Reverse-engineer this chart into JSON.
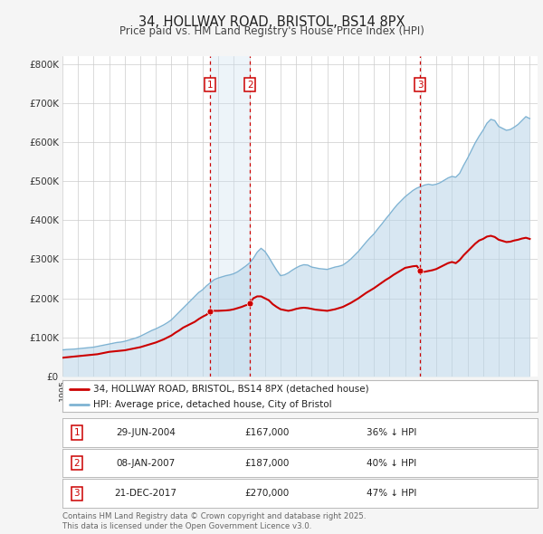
{
  "title": "34, HOLLWAY ROAD, BRISTOL, BS14 8PX",
  "subtitle": "Price paid vs. HM Land Registry's House Price Index (HPI)",
  "background_color": "#f5f5f5",
  "plot_bg_color": "#ffffff",
  "grid_color": "#cccccc",
  "hpi_color": "#7fb3d3",
  "hpi_fill_color": "#b8d4e8",
  "price_color": "#cc0000",
  "vline_color1": "#cc0000",
  "vline_color3": "#cc0000",
  "ylim": [
    0,
    820000
  ],
  "yticks": [
    0,
    100000,
    200000,
    300000,
    400000,
    500000,
    600000,
    700000,
    800000
  ],
  "ytick_labels": [
    "£0",
    "£100K",
    "£200K",
    "£300K",
    "£400K",
    "£500K",
    "£600K",
    "£700K",
    "£800K"
  ],
  "xlim_start": 1995.0,
  "xlim_end": 2025.5,
  "legend_line1": "34, HOLLWAY ROAD, BRISTOL, BS14 8PX (detached house)",
  "legend_line2": "HPI: Average price, detached house, City of Bristol",
  "purchases": [
    {
      "id": 1,
      "date": "29-JUN-2004",
      "date_x": 2004.49,
      "price": 167000,
      "pct": "36%"
    },
    {
      "id": 2,
      "date": "08-JAN-2007",
      "date_x": 2007.03,
      "price": 187000,
      "pct": "40%"
    },
    {
      "id": 3,
      "date": "21-DEC-2017",
      "date_x": 2017.97,
      "price": 270000,
      "pct": "47%"
    }
  ],
  "footer": "Contains HM Land Registry data © Crown copyright and database right 2025.\nThis data is licensed under the Open Government Licence v3.0.",
  "hpi_data": [
    [
      1995.0,
      68000
    ],
    [
      1995.25,
      69000
    ],
    [
      1995.5,
      69500
    ],
    [
      1995.75,
      70000
    ],
    [
      1996.0,
      71000
    ],
    [
      1996.25,
      72000
    ],
    [
      1996.5,
      73000
    ],
    [
      1996.75,
      74000
    ],
    [
      1997.0,
      75000
    ],
    [
      1997.25,
      77000
    ],
    [
      1997.5,
      79000
    ],
    [
      1997.75,
      81000
    ],
    [
      1998.0,
      83000
    ],
    [
      1998.25,
      85000
    ],
    [
      1998.5,
      87000
    ],
    [
      1998.75,
      88000
    ],
    [
      1999.0,
      90000
    ],
    [
      1999.25,
      93000
    ],
    [
      1999.5,
      96000
    ],
    [
      1999.75,
      99000
    ],
    [
      2000.0,
      103000
    ],
    [
      2000.25,
      108000
    ],
    [
      2000.5,
      113000
    ],
    [
      2000.75,
      118000
    ],
    [
      2001.0,
      122000
    ],
    [
      2001.25,
      127000
    ],
    [
      2001.5,
      132000
    ],
    [
      2001.75,
      138000
    ],
    [
      2002.0,
      145000
    ],
    [
      2002.25,
      155000
    ],
    [
      2002.5,
      165000
    ],
    [
      2002.75,
      175000
    ],
    [
      2003.0,
      185000
    ],
    [
      2003.25,
      195000
    ],
    [
      2003.5,
      205000
    ],
    [
      2003.75,
      215000
    ],
    [
      2004.0,
      222000
    ],
    [
      2004.25,
      232000
    ],
    [
      2004.5,
      240000
    ],
    [
      2004.75,
      248000
    ],
    [
      2005.0,
      252000
    ],
    [
      2005.25,
      255000
    ],
    [
      2005.5,
      258000
    ],
    [
      2005.75,
      260000
    ],
    [
      2006.0,
      263000
    ],
    [
      2006.25,
      268000
    ],
    [
      2006.5,
      275000
    ],
    [
      2006.75,
      282000
    ],
    [
      2007.0,
      290000
    ],
    [
      2007.25,
      302000
    ],
    [
      2007.5,
      318000
    ],
    [
      2007.75,
      328000
    ],
    [
      2008.0,
      320000
    ],
    [
      2008.25,
      305000
    ],
    [
      2008.5,
      288000
    ],
    [
      2008.75,
      272000
    ],
    [
      2009.0,
      258000
    ],
    [
      2009.25,
      260000
    ],
    [
      2009.5,
      265000
    ],
    [
      2009.75,
      272000
    ],
    [
      2010.0,
      278000
    ],
    [
      2010.25,
      283000
    ],
    [
      2010.5,
      286000
    ],
    [
      2010.75,
      285000
    ],
    [
      2011.0,
      280000
    ],
    [
      2011.25,
      278000
    ],
    [
      2011.5,
      276000
    ],
    [
      2011.75,
      275000
    ],
    [
      2012.0,
      274000
    ],
    [
      2012.25,
      277000
    ],
    [
      2012.5,
      280000
    ],
    [
      2012.75,
      282000
    ],
    [
      2013.0,
      285000
    ],
    [
      2013.25,
      292000
    ],
    [
      2013.5,
      300000
    ],
    [
      2013.75,
      310000
    ],
    [
      2014.0,
      320000
    ],
    [
      2014.25,
      332000
    ],
    [
      2014.5,
      344000
    ],
    [
      2014.75,
      355000
    ],
    [
      2015.0,
      365000
    ],
    [
      2015.25,
      378000
    ],
    [
      2015.5,
      390000
    ],
    [
      2015.75,
      403000
    ],
    [
      2016.0,
      415000
    ],
    [
      2016.25,
      428000
    ],
    [
      2016.5,
      440000
    ],
    [
      2016.75,
      450000
    ],
    [
      2017.0,
      460000
    ],
    [
      2017.25,
      468000
    ],
    [
      2017.5,
      476000
    ],
    [
      2017.75,
      482000
    ],
    [
      2018.0,
      486000
    ],
    [
      2018.25,
      490000
    ],
    [
      2018.5,
      492000
    ],
    [
      2018.75,
      490000
    ],
    [
      2019.0,
      492000
    ],
    [
      2019.25,
      496000
    ],
    [
      2019.5,
      502000
    ],
    [
      2019.75,
      508000
    ],
    [
      2020.0,
      512000
    ],
    [
      2020.25,
      510000
    ],
    [
      2020.5,
      520000
    ],
    [
      2020.75,
      540000
    ],
    [
      2021.0,
      558000
    ],
    [
      2021.25,
      578000
    ],
    [
      2021.5,
      598000
    ],
    [
      2021.75,
      615000
    ],
    [
      2022.0,
      630000
    ],
    [
      2022.25,
      648000
    ],
    [
      2022.5,
      658000
    ],
    [
      2022.75,
      655000
    ],
    [
      2023.0,
      640000
    ],
    [
      2023.25,
      635000
    ],
    [
      2023.5,
      630000
    ],
    [
      2023.75,
      632000
    ],
    [
      2024.0,
      638000
    ],
    [
      2024.25,
      645000
    ],
    [
      2024.5,
      655000
    ],
    [
      2024.75,
      665000
    ],
    [
      2025.0,
      660000
    ]
  ],
  "price_data": [
    [
      1995.0,
      48000
    ],
    [
      1995.25,
      49000
    ],
    [
      1995.5,
      50000
    ],
    [
      1995.75,
      51000
    ],
    [
      1996.0,
      52000
    ],
    [
      1996.25,
      53000
    ],
    [
      1996.5,
      54000
    ],
    [
      1996.75,
      55000
    ],
    [
      1997.0,
      56000
    ],
    [
      1997.25,
      57000
    ],
    [
      1997.5,
      59000
    ],
    [
      1997.75,
      61000
    ],
    [
      1998.0,
      63000
    ],
    [
      1998.25,
      64000
    ],
    [
      1998.5,
      65000
    ],
    [
      1998.75,
      66000
    ],
    [
      1999.0,
      67000
    ],
    [
      1999.25,
      69000
    ],
    [
      1999.5,
      71000
    ],
    [
      1999.75,
      73000
    ],
    [
      2000.0,
      75000
    ],
    [
      2000.25,
      78000
    ],
    [
      2000.5,
      81000
    ],
    [
      2000.75,
      84000
    ],
    [
      2001.0,
      87000
    ],
    [
      2001.25,
      91000
    ],
    [
      2001.5,
      95000
    ],
    [
      2001.75,
      100000
    ],
    [
      2002.0,
      105000
    ],
    [
      2002.25,
      112000
    ],
    [
      2002.5,
      118000
    ],
    [
      2002.75,
      125000
    ],
    [
      2003.0,
      130000
    ],
    [
      2003.25,
      135000
    ],
    [
      2003.5,
      140000
    ],
    [
      2003.75,
      147000
    ],
    [
      2004.0,
      153000
    ],
    [
      2004.25,
      158000
    ],
    [
      2004.49,
      167000
    ],
    [
      2004.75,
      168000
    ],
    [
      2005.0,
      168000
    ],
    [
      2005.25,
      168500
    ],
    [
      2005.5,
      169000
    ],
    [
      2005.75,
      170000
    ],
    [
      2006.0,
      172000
    ],
    [
      2006.25,
      175000
    ],
    [
      2006.5,
      178000
    ],
    [
      2006.75,
      182000
    ],
    [
      2007.0,
      185000
    ],
    [
      2007.03,
      187000
    ],
    [
      2007.25,
      200000
    ],
    [
      2007.5,
      205000
    ],
    [
      2007.75,
      205000
    ],
    [
      2008.0,
      200000
    ],
    [
      2008.25,
      195000
    ],
    [
      2008.5,
      185000
    ],
    [
      2008.75,
      178000
    ],
    [
      2009.0,
      172000
    ],
    [
      2009.25,
      170000
    ],
    [
      2009.5,
      168000
    ],
    [
      2009.75,
      170000
    ],
    [
      2010.0,
      173000
    ],
    [
      2010.25,
      175000
    ],
    [
      2010.5,
      176000
    ],
    [
      2010.75,
      175000
    ],
    [
      2011.0,
      173000
    ],
    [
      2011.25,
      171000
    ],
    [
      2011.5,
      170000
    ],
    [
      2011.75,
      169000
    ],
    [
      2012.0,
      168000
    ],
    [
      2012.25,
      170000
    ],
    [
      2012.5,
      172000
    ],
    [
      2012.75,
      175000
    ],
    [
      2013.0,
      178000
    ],
    [
      2013.25,
      183000
    ],
    [
      2013.5,
      188000
    ],
    [
      2013.75,
      194000
    ],
    [
      2014.0,
      200000
    ],
    [
      2014.25,
      207000
    ],
    [
      2014.5,
      214000
    ],
    [
      2014.75,
      220000
    ],
    [
      2015.0,
      226000
    ],
    [
      2015.25,
      233000
    ],
    [
      2015.5,
      240000
    ],
    [
      2015.75,
      247000
    ],
    [
      2016.0,
      253000
    ],
    [
      2016.25,
      260000
    ],
    [
      2016.5,
      266000
    ],
    [
      2016.75,
      272000
    ],
    [
      2017.0,
      278000
    ],
    [
      2017.25,
      280000
    ],
    [
      2017.5,
      282000
    ],
    [
      2017.75,
      283000
    ],
    [
      2017.97,
      270000
    ],
    [
      2018.0,
      268000
    ],
    [
      2018.25,
      268000
    ],
    [
      2018.5,
      270000
    ],
    [
      2018.75,
      272000
    ],
    [
      2019.0,
      275000
    ],
    [
      2019.25,
      280000
    ],
    [
      2019.5,
      285000
    ],
    [
      2019.75,
      290000
    ],
    [
      2020.0,
      293000
    ],
    [
      2020.25,
      290000
    ],
    [
      2020.5,
      298000
    ],
    [
      2020.75,
      310000
    ],
    [
      2021.0,
      320000
    ],
    [
      2021.25,
      330000
    ],
    [
      2021.5,
      340000
    ],
    [
      2021.75,
      348000
    ],
    [
      2022.0,
      352000
    ],
    [
      2022.25,
      358000
    ],
    [
      2022.5,
      360000
    ],
    [
      2022.75,
      357000
    ],
    [
      2023.0,
      350000
    ],
    [
      2023.25,
      347000
    ],
    [
      2023.5,
      344000
    ],
    [
      2023.75,
      345000
    ],
    [
      2024.0,
      348000
    ],
    [
      2024.25,
      350000
    ],
    [
      2024.5,
      353000
    ],
    [
      2024.75,
      355000
    ],
    [
      2025.0,
      352000
    ]
  ]
}
